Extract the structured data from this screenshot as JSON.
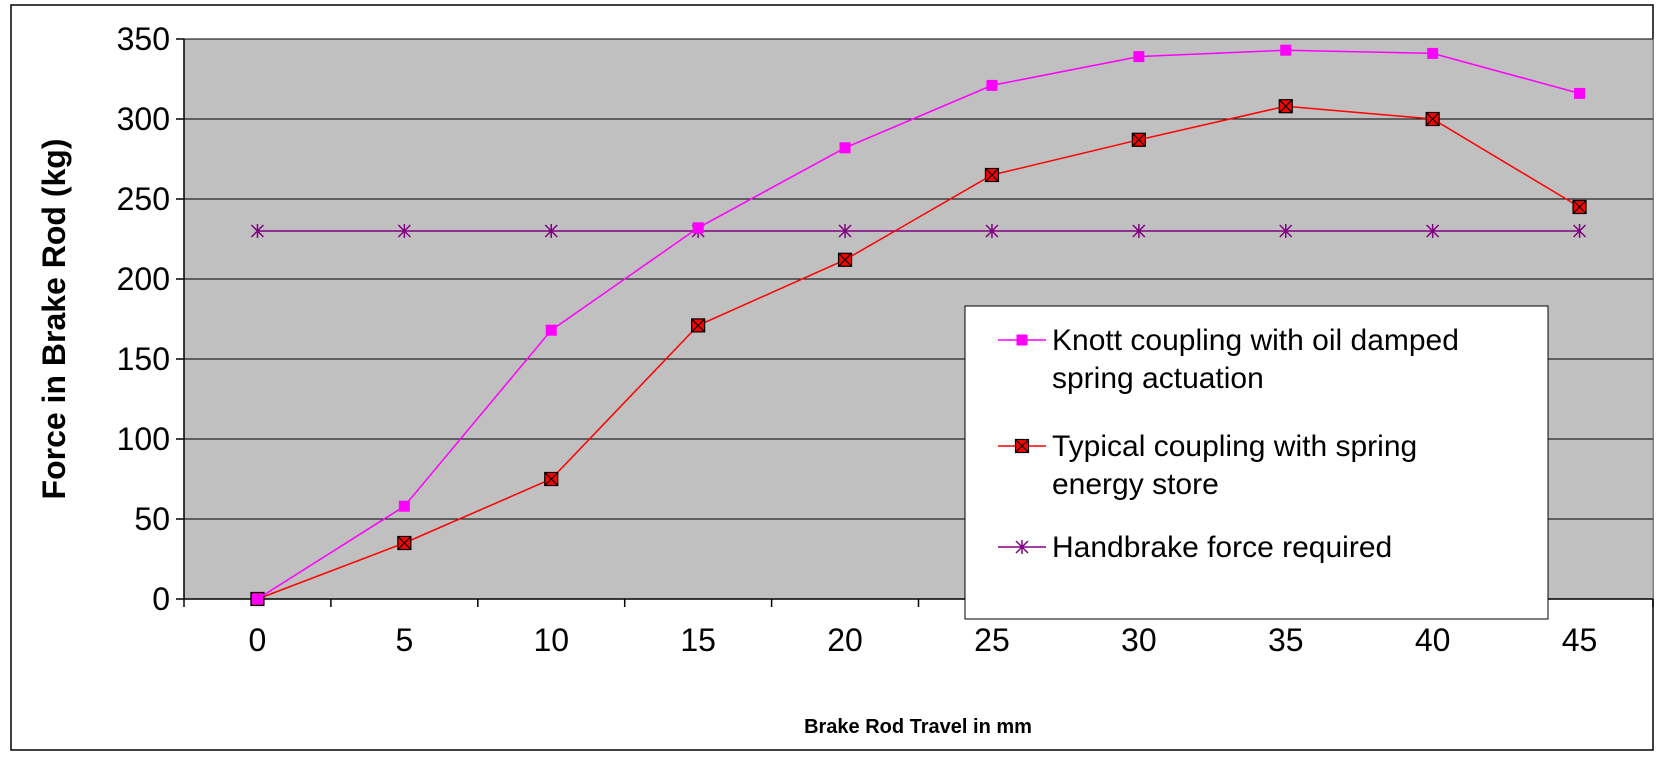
{
  "chart_data": {
    "type": "line",
    "title": "",
    "xlabel": "Brake Rod Travel in mm",
    "ylabel": "Force in Brake Rod (kg)",
    "x": [
      0,
      5,
      10,
      15,
      20,
      25,
      30,
      35,
      40,
      45
    ],
    "xlim": [
      -2.5,
      47.5
    ],
    "ylim": [
      0,
      350
    ],
    "yticks": [
      0,
      50,
      100,
      150,
      200,
      250,
      300,
      350
    ],
    "grid": true,
    "legend_position": "right",
    "plot_background": "#c0c0c0",
    "series": [
      {
        "name": "Knott coupling with oil damped spring actuation",
        "name_lines": [
          "Knott coupling with oil damped",
          "spring actuation"
        ],
        "values": [
          0,
          58,
          168,
          232,
          282,
          321,
          339,
          343,
          341,
          316
        ],
        "color": "#ff00ff",
        "marker": "square"
      },
      {
        "name": "Typical coupling with spring energy store",
        "name_lines": [
          "Typical coupling with spring",
          "energy store"
        ],
        "values": [
          0,
          35,
          75,
          171,
          212,
          265,
          287,
          308,
          300,
          245
        ],
        "color": "#ff0000",
        "marker": "square-x"
      },
      {
        "name": "Handbrake force required",
        "name_lines": [
          "Handbrake force required"
        ],
        "values": [
          230,
          230,
          230,
          230,
          230,
          230,
          230,
          230,
          230,
          230
        ],
        "color": "#800080",
        "marker": "asterisk"
      }
    ]
  }
}
